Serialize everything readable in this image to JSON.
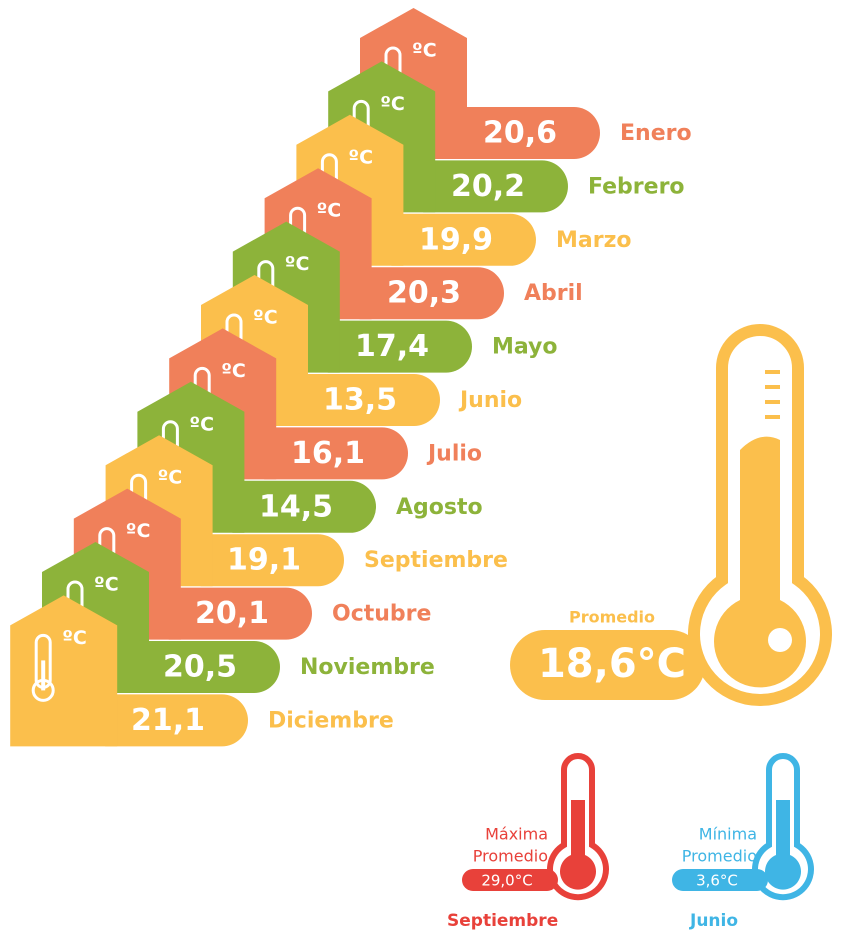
{
  "months": [
    {
      "name": "Enero",
      "value": "20,6",
      "color": "#f0805a"
    },
    {
      "name": "Febrero",
      "value": "20,2",
      "color": "#8db33a"
    },
    {
      "name": "Marzo",
      "value": "19,9",
      "color": "#fbbf4c"
    },
    {
      "name": "Abril",
      "value": "20,3",
      "color": "#f0805a"
    },
    {
      "name": "Mayo",
      "value": "17,4",
      "color": "#8db33a"
    },
    {
      "name": "Junio",
      "value": "13,5",
      "color": "#fbbf4c"
    },
    {
      "name": "Julio",
      "value": "16,1",
      "color": "#f0805a"
    },
    {
      "name": "Agosto",
      "value": "14,5",
      "color": "#8db33a"
    },
    {
      "name": "Septiembre",
      "value": "19,1",
      "color": "#fbbf4c"
    },
    {
      "name": "Octubre",
      "value": "20,1",
      "color": "#f0805a"
    },
    {
      "name": "Noviembre",
      "value": "20,5",
      "color": "#8db33a"
    },
    {
      "name": "Diciembre",
      "value": "21,1",
      "color": "#fbbf4c"
    }
  ],
  "unit_badge": "ºC",
  "average": {
    "label": "Promedio",
    "value": "18,6°C",
    "color": "#fbbf4c"
  },
  "maximum": {
    "lines": [
      "Máxima",
      "Promedio"
    ],
    "value": "29,0°C",
    "month": "Septiembre",
    "color": "#e8413a"
  },
  "minimum": {
    "lines": [
      "Mínima",
      "Promedio"
    ],
    "value": "3,6°C",
    "month": "Junio",
    "color": "#3fb5e5"
  }
}
